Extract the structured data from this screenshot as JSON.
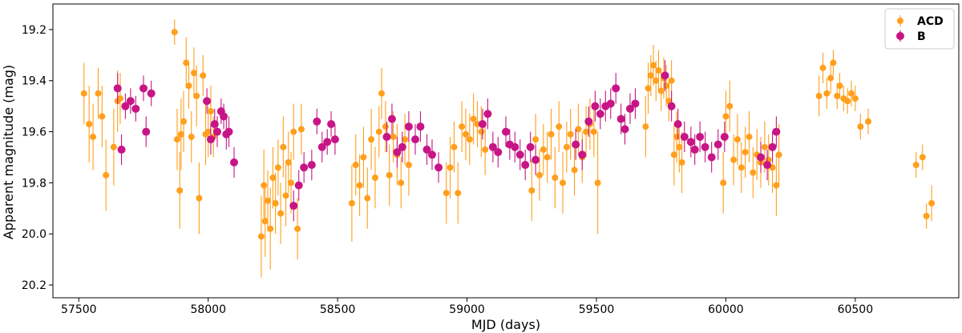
{
  "chart_data": {
    "type": "scatter",
    "title": "",
    "xlabel": "MJD (days)",
    "ylabel": "Apparent magnitude (mag)",
    "xlim": [
      57400,
      60900
    ],
    "ylim": [
      20.25,
      19.1
    ],
    "y_inverted": true,
    "x_ticks": [
      57500,
      58000,
      58500,
      59000,
      59500,
      60000,
      60500
    ],
    "x_tick_labels": [
      "57500",
      "58000",
      "58500",
      "59000",
      "59500",
      "60000",
      "60500"
    ],
    "y_ticks": [
      19.2,
      19.4,
      19.6,
      19.8,
      20.0,
      20.2
    ],
    "y_tick_labels": [
      "19.2",
      "19.4",
      "19.6",
      "19.8",
      "20.0",
      "20.2"
    ],
    "legend_position": "top-right",
    "series": [
      {
        "name": "ACD",
        "color": "#ff9f1c",
        "points": [
          [
            57520,
            19.45,
            0.12
          ],
          [
            57540,
            19.57,
            0.15
          ],
          [
            57555,
            19.62,
            0.13
          ],
          [
            57575,
            19.45,
            0.1
          ],
          [
            57590,
            19.54,
            0.12
          ],
          [
            57605,
            19.77,
            0.14
          ],
          [
            57635,
            19.66,
            0.15
          ],
          [
            57650,
            19.48,
            0.12
          ],
          [
            57660,
            19.47,
            0.1
          ],
          [
            57870,
            19.21,
            0.05
          ],
          [
            57880,
            19.63,
            0.12
          ],
          [
            57890,
            19.83,
            0.15
          ],
          [
            57895,
            19.61,
            0.14
          ],
          [
            57905,
            19.56,
            0.12
          ],
          [
            57915,
            19.33,
            0.1
          ],
          [
            57925,
            19.42,
            0.09
          ],
          [
            57935,
            19.62,
            0.1
          ],
          [
            57945,
            19.37,
            0.1
          ],
          [
            57955,
            19.46,
            0.12
          ],
          [
            57965,
            19.86,
            0.14
          ],
          [
            57980,
            19.38,
            0.08
          ],
          [
            57990,
            19.61,
            0.12
          ],
          [
            58000,
            19.6,
            0.1
          ],
          [
            58010,
            19.52,
            0.1
          ],
          [
            58020,
            19.62,
            0.08
          ],
          [
            58205,
            20.01,
            0.16
          ],
          [
            58215,
            19.81,
            0.14
          ],
          [
            58220,
            19.95,
            0.14
          ],
          [
            58230,
            19.87,
            0.12
          ],
          [
            58240,
            19.98,
            0.16
          ],
          [
            58250,
            19.78,
            0.12
          ],
          [
            58260,
            19.88,
            0.12
          ],
          [
            58270,
            19.74,
            0.11
          ],
          [
            58280,
            19.92,
            0.12
          ],
          [
            58290,
            19.66,
            0.12
          ],
          [
            58300,
            19.85,
            0.12
          ],
          [
            58310,
            19.72,
            0.12
          ],
          [
            58320,
            19.8,
            0.12
          ],
          [
            58330,
            19.6,
            0.11
          ],
          [
            58345,
            19.98,
            0.12
          ],
          [
            58360,
            19.59,
            0.1
          ],
          [
            58555,
            19.88,
            0.15
          ],
          [
            58570,
            19.73,
            0.12
          ],
          [
            58585,
            19.81,
            0.12
          ],
          [
            58600,
            19.7,
            0.12
          ],
          [
            58615,
            19.86,
            0.12
          ],
          [
            58630,
            19.63,
            0.12
          ],
          [
            58645,
            19.78,
            0.12
          ],
          [
            58660,
            19.6,
            0.1
          ],
          [
            58670,
            19.45,
            0.1
          ],
          [
            58685,
            19.58,
            0.1
          ],
          [
            58700,
            19.77,
            0.12
          ],
          [
            58715,
            19.62,
            0.1
          ],
          [
            58730,
            19.69,
            0.12
          ],
          [
            58745,
            19.8,
            0.1
          ],
          [
            58760,
            19.63,
            0.1
          ],
          [
            58775,
            19.73,
            0.12
          ],
          [
            58920,
            19.84,
            0.12
          ],
          [
            58935,
            19.74,
            0.12
          ],
          [
            58950,
            19.66,
            0.1
          ],
          [
            58965,
            19.84,
            0.12
          ],
          [
            58980,
            19.58,
            0.1
          ],
          [
            58995,
            19.61,
            0.1
          ],
          [
            59010,
            19.63,
            0.1
          ],
          [
            59025,
            19.55,
            0.1
          ],
          [
            59040,
            19.57,
            0.09
          ],
          [
            59055,
            19.6,
            0.1
          ],
          [
            59070,
            19.67,
            0.1
          ],
          [
            59250,
            19.83,
            0.12
          ],
          [
            59265,
            19.63,
            0.1
          ],
          [
            59280,
            19.77,
            0.1
          ],
          [
            59295,
            19.67,
            0.1
          ],
          [
            59310,
            19.7,
            0.1
          ],
          [
            59325,
            19.61,
            0.1
          ],
          [
            59340,
            19.78,
            0.12
          ],
          [
            59355,
            19.58,
            0.1
          ],
          [
            59370,
            19.8,
            0.12
          ],
          [
            59385,
            19.66,
            0.1
          ],
          [
            59400,
            19.61,
            0.1
          ],
          [
            59415,
            19.75,
            0.1
          ],
          [
            59430,
            19.59,
            0.1
          ],
          [
            59445,
            19.7,
            0.1
          ],
          [
            59460,
            19.6,
            0.1
          ],
          [
            59475,
            19.57,
            0.1
          ],
          [
            59490,
            19.6,
            0.1
          ],
          [
            59505,
            19.8,
            0.2
          ],
          [
            59690,
            19.58,
            0.12
          ],
          [
            59700,
            19.43,
            0.1
          ],
          [
            59710,
            19.38,
            0.08
          ],
          [
            59720,
            19.34,
            0.08
          ],
          [
            59730,
            19.4,
            0.08
          ],
          [
            59740,
            19.36,
            0.08
          ],
          [
            59750,
            19.44,
            0.08
          ],
          [
            59760,
            19.39,
            0.08
          ],
          [
            59770,
            19.42,
            0.08
          ],
          [
            59780,
            19.48,
            0.08
          ],
          [
            59790,
            19.4,
            0.08
          ],
          [
            59800,
            19.69,
            0.12
          ],
          [
            59810,
            19.62,
            0.1
          ],
          [
            59820,
            19.66,
            0.1
          ],
          [
            59830,
            19.72,
            0.12
          ],
          [
            59990,
            19.8,
            0.12
          ],
          [
            60000,
            19.54,
            0.1
          ],
          [
            60015,
            19.5,
            0.1
          ],
          [
            60030,
            19.71,
            0.1
          ],
          [
            60045,
            19.63,
            0.1
          ],
          [
            60060,
            19.74,
            0.1
          ],
          [
            60075,
            19.68,
            0.1
          ],
          [
            60090,
            19.62,
            0.1
          ],
          [
            60105,
            19.76,
            0.1
          ],
          [
            60120,
            19.69,
            0.1
          ],
          [
            60135,
            19.72,
            0.1
          ],
          [
            60150,
            19.66,
            0.1
          ],
          [
            60165,
            19.71,
            0.1
          ],
          [
            60180,
            19.74,
            0.1
          ],
          [
            60195,
            19.81,
            0.12
          ],
          [
            60205,
            19.69,
            0.12
          ],
          [
            60360,
            19.46,
            0.08
          ],
          [
            60375,
            19.35,
            0.06
          ],
          [
            60390,
            19.45,
            0.06
          ],
          [
            60405,
            19.39,
            0.06
          ],
          [
            60415,
            19.33,
            0.05
          ],
          [
            60430,
            19.46,
            0.05
          ],
          [
            60440,
            19.42,
            0.05
          ],
          [
            60455,
            19.47,
            0.05
          ],
          [
            60470,
            19.48,
            0.05
          ],
          [
            60485,
            19.45,
            0.05
          ],
          [
            60500,
            19.47,
            0.05
          ],
          [
            60520,
            19.58,
            0.05
          ],
          [
            60550,
            19.56,
            0.05
          ],
          [
            60735,
            19.73,
            0.05
          ],
          [
            60760,
            19.7,
            0.05
          ],
          [
            60775,
            19.93,
            0.05
          ],
          [
            60795,
            19.88,
            0.07
          ]
        ]
      },
      {
        "name": "B",
        "color": "#c71585",
        "points": [
          [
            57650,
            19.43,
            0.06
          ],
          [
            57665,
            19.67,
            0.06
          ],
          [
            57680,
            19.5,
            0.05
          ],
          [
            57700,
            19.48,
            0.05
          ],
          [
            57720,
            19.51,
            0.05
          ],
          [
            57750,
            19.43,
            0.05
          ],
          [
            57760,
            19.6,
            0.06
          ],
          [
            57780,
            19.45,
            0.05
          ],
          [
            57995,
            19.48,
            0.05
          ],
          [
            58010,
            19.63,
            0.06
          ],
          [
            58025,
            19.57,
            0.06
          ],
          [
            58035,
            19.6,
            0.06
          ],
          [
            58050,
            19.52,
            0.05
          ],
          [
            58060,
            19.54,
            0.05
          ],
          [
            58070,
            19.61,
            0.06
          ],
          [
            58080,
            19.6,
            0.06
          ],
          [
            58100,
            19.72,
            0.06
          ],
          [
            58330,
            19.89,
            0.06
          ],
          [
            58350,
            19.81,
            0.06
          ],
          [
            58370,
            19.74,
            0.06
          ],
          [
            58400,
            19.73,
            0.06
          ],
          [
            58420,
            19.56,
            0.05
          ],
          [
            58440,
            19.66,
            0.06
          ],
          [
            58460,
            19.64,
            0.05
          ],
          [
            58475,
            19.57,
            0.05
          ],
          [
            58490,
            19.63,
            0.06
          ],
          [
            58690,
            19.62,
            0.06
          ],
          [
            58710,
            19.55,
            0.06
          ],
          [
            58730,
            19.68,
            0.06
          ],
          [
            58750,
            19.66,
            0.06
          ],
          [
            58775,
            19.58,
            0.06
          ],
          [
            58800,
            19.63,
            0.06
          ],
          [
            58820,
            19.58,
            0.06
          ],
          [
            58845,
            19.67,
            0.06
          ],
          [
            58865,
            19.69,
            0.06
          ],
          [
            58890,
            19.74,
            0.06
          ],
          [
            59060,
            19.57,
            0.06
          ],
          [
            59080,
            19.53,
            0.06
          ],
          [
            59100,
            19.66,
            0.06
          ],
          [
            59120,
            19.68,
            0.06
          ],
          [
            59150,
            19.6,
            0.06
          ],
          [
            59165,
            19.65,
            0.06
          ],
          [
            59185,
            19.66,
            0.06
          ],
          [
            59205,
            19.69,
            0.06
          ],
          [
            59225,
            19.73,
            0.06
          ],
          [
            59245,
            19.66,
            0.06
          ],
          [
            59265,
            19.71,
            0.06
          ],
          [
            59420,
            19.65,
            0.06
          ],
          [
            59445,
            19.69,
            0.06
          ],
          [
            59470,
            19.56,
            0.06
          ],
          [
            59495,
            19.5,
            0.06
          ],
          [
            59515,
            19.53,
            0.06
          ],
          [
            59535,
            19.5,
            0.06
          ],
          [
            59555,
            19.49,
            0.06
          ],
          [
            59575,
            19.43,
            0.06
          ],
          [
            59595,
            19.55,
            0.06
          ],
          [
            59610,
            19.59,
            0.06
          ],
          [
            59630,
            19.51,
            0.06
          ],
          [
            59650,
            19.49,
            0.06
          ],
          [
            59765,
            19.38,
            0.06
          ],
          [
            59790,
            19.5,
            0.06
          ],
          [
            59815,
            19.57,
            0.06
          ],
          [
            59840,
            19.62,
            0.06
          ],
          [
            59865,
            19.64,
            0.06
          ],
          [
            59880,
            19.67,
            0.06
          ],
          [
            59900,
            19.62,
            0.06
          ],
          [
            59920,
            19.66,
            0.06
          ],
          [
            59945,
            19.7,
            0.06
          ],
          [
            59970,
            19.65,
            0.06
          ],
          [
            59995,
            19.62,
            0.06
          ],
          [
            60135,
            19.7,
            0.06
          ],
          [
            60160,
            19.73,
            0.06
          ],
          [
            60180,
            19.66,
            0.06
          ],
          [
            60195,
            19.6,
            0.06
          ]
        ]
      }
    ]
  }
}
